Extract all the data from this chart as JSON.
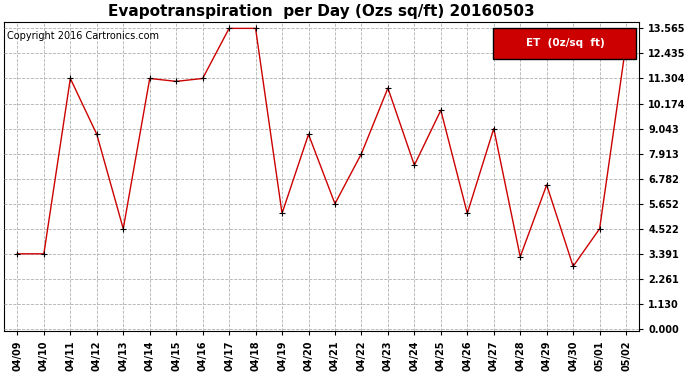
{
  "title": "Evapotranspiration  per Day (Ozs sq/ft) 20160503",
  "copyright": "Copyright 2016 Cartronics.com",
  "legend_label": "ET  (0z/sq  ft)",
  "x_labels": [
    "04/09",
    "04/10",
    "04/11",
    "04/12",
    "04/13",
    "04/14",
    "04/15",
    "04/16",
    "04/17",
    "04/18",
    "04/19",
    "04/20",
    "04/21",
    "04/22",
    "04/23",
    "04/24",
    "04/25",
    "04/26",
    "04/27",
    "04/28",
    "04/29",
    "04/30",
    "05/01",
    "05/02"
  ],
  "y_values": [
    3.391,
    3.391,
    11.304,
    8.782,
    4.522,
    11.304,
    11.174,
    11.304,
    13.565,
    13.565,
    5.217,
    8.782,
    5.652,
    7.913,
    10.87,
    7.391,
    9.87,
    5.217,
    9.043,
    3.261,
    6.5,
    2.826,
    4.522,
    12.87
  ],
  "y_ticks": [
    0.0,
    1.13,
    2.261,
    3.391,
    4.522,
    5.652,
    6.782,
    7.913,
    9.043,
    10.174,
    11.304,
    12.435,
    13.565
  ],
  "y_max": 13.565,
  "y_min": 0.0,
  "line_color": "#cc0000",
  "marker": "+",
  "background_color": "#ffffff",
  "grid_color": "#b0b0b0",
  "title_fontsize": 11,
  "copyright_fontsize": 7,
  "tick_fontsize": 7,
  "legend_bg": "#cc0000",
  "legend_text_color": "#ffffff"
}
